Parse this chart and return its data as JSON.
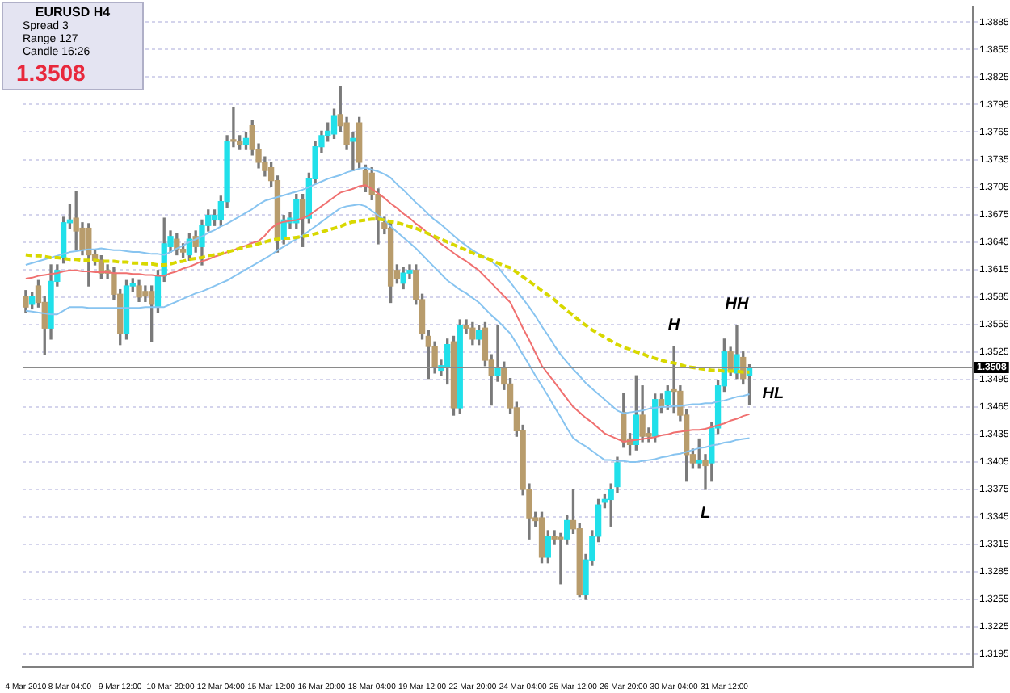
{
  "chart_data": {
    "type": "candlestick",
    "title": "EURUSD  H4",
    "annotations": [
      "Spread  3",
      "Range  127",
      "Candle  16:26",
      "1.3508",
      {
        "text": "H",
        "y": 1.3531
      },
      {
        "text": "HH",
        "y": 1.3554
      },
      {
        "text": "L",
        "y": 1.3375
      },
      "HL"
    ],
    "categories": [
      "4 Mar 2010",
      null,
      null,
      null,
      null,
      null,
      null,
      "8 Mar 04:00",
      null,
      null,
      null,
      null,
      null,
      null,
      null,
      "9 Mar 12:00",
      null,
      null,
      null,
      null,
      null,
      null,
      null,
      "10 Mar 20:00",
      null,
      null,
      null,
      null,
      null,
      null,
      null,
      "12 Mar 04:00",
      null,
      null,
      null,
      null,
      null,
      null,
      null,
      "15 Mar 12:00",
      null,
      null,
      null,
      null,
      null,
      null,
      null,
      "16 Mar 20:00",
      null,
      null,
      null,
      null,
      null,
      null,
      null,
      "18 Mar 04:00",
      null,
      null,
      null,
      null,
      null,
      null,
      null,
      "19 Mar 12:00",
      null,
      null,
      null,
      null,
      null,
      null,
      null,
      "22 Mar 20:00",
      null,
      null,
      null,
      null,
      null,
      null,
      null,
      "24 Mar 04:00",
      null,
      null,
      null,
      null,
      null,
      null,
      null,
      "25 Mar 12:00",
      null,
      null,
      null,
      null,
      null,
      null,
      null,
      "26 Mar 20:00",
      null,
      null,
      null,
      null,
      null,
      null,
      null,
      "30 Mar 04:00",
      null,
      null,
      null,
      null,
      null,
      null,
      null,
      "31 Mar 12:00",
      null,
      null,
      null,
      null,
      null,
      null,
      null,
      null,
      null,
      null,
      null,
      null,
      null,
      null,
      null,
      null,
      null,
      null,
      null,
      null,
      null,
      null,
      null,
      null,
      null,
      null,
      null,
      null,
      null,
      null,
      null,
      null,
      null,
      null,
      null,
      null,
      null,
      null,
      null
    ],
    "ohlc": [
      [
        1.3585,
        1.3592,
        1.3568,
        1.3574
      ],
      [
        1.3577,
        1.359,
        1.3572,
        1.3585
      ],
      [
        1.3597,
        1.3603,
        1.3574,
        1.3579
      ],
      [
        1.3579,
        1.3585,
        1.3522,
        1.3551
      ],
      [
        1.3551,
        1.362,
        1.3539,
        1.3602
      ],
      [
        1.3602,
        1.362,
        1.3597,
        1.3614
      ],
      [
        1.3628,
        1.3672,
        1.3622,
        1.3666
      ],
      [
        1.3666,
        1.3686,
        1.366,
        1.3669
      ],
      [
        1.3671,
        1.37,
        1.3637,
        1.3657
      ],
      [
        1.366,
        1.3666,
        1.3631,
        1.3637
      ],
      [
        1.366,
        1.3665,
        1.3597,
        1.3631
      ],
      [
        1.3631,
        1.3637,
        1.362,
        1.3625
      ],
      [
        1.3625,
        1.363,
        1.3605,
        1.3611
      ],
      [
        1.3614,
        1.362,
        1.3605,
        1.3611
      ],
      [
        1.3611,
        1.3617,
        1.3582,
        1.3588
      ],
      [
        1.3588,
        1.3593,
        1.3533,
        1.3545
      ],
      [
        1.3545,
        1.3603,
        1.3539,
        1.3597
      ],
      [
        1.3597,
        1.3605,
        1.3591,
        1.36
      ],
      [
        1.3597,
        1.3603,
        1.358,
        1.3585
      ],
      [
        1.3591,
        1.3597,
        1.358,
        1.3586
      ],
      [
        1.3591,
        1.3597,
        1.3536,
        1.3577
      ],
      [
        1.3574,
        1.3614,
        1.3568,
        1.3608
      ],
      [
        1.3608,
        1.3671,
        1.3602,
        1.3643
      ],
      [
        1.364,
        1.3657,
        1.3634,
        1.3651
      ],
      [
        1.3648,
        1.3654,
        1.3631,
        1.3637
      ],
      [
        1.3637,
        1.3643,
        1.3628,
        1.3634
      ],
      [
        1.3631,
        1.3654,
        1.3625,
        1.3648
      ],
      [
        1.3651,
        1.3657,
        1.3634,
        1.364
      ],
      [
        1.364,
        1.3669,
        1.362,
        1.3663
      ],
      [
        1.3663,
        1.368,
        1.3657,
        1.3674
      ],
      [
        1.3669,
        1.368,
        1.3663,
        1.3674
      ],
      [
        1.3669,
        1.3695,
        1.3663,
        1.3689
      ],
      [
        1.3689,
        1.3761,
        1.3683,
        1.3755
      ],
      [
        1.3755,
        1.3792,
        1.3749,
        1.3755
      ],
      [
        1.3755,
        1.3761,
        1.3746,
        1.3752
      ],
      [
        1.3752,
        1.3764,
        1.3746,
        1.3758
      ],
      [
        1.3772,
        1.3778,
        1.374,
        1.3746
      ],
      [
        1.3746,
        1.3752,
        1.3726,
        1.3732
      ],
      [
        1.3732,
        1.3738,
        1.3717,
        1.3723
      ],
      [
        1.3726,
        1.3732,
        1.3706,
        1.3712
      ],
      [
        1.3712,
        1.3717,
        1.3634,
        1.3648
      ],
      [
        1.3648,
        1.3674,
        1.3643,
        1.3669
      ],
      [
        1.3666,
        1.3677,
        1.366,
        1.3671
      ],
      [
        1.3666,
        1.3697,
        1.366,
        1.3691
      ],
      [
        1.3691,
        1.3697,
        1.364,
        1.3671
      ],
      [
        1.3671,
        1.372,
        1.3666,
        1.3714
      ],
      [
        1.3714,
        1.3755,
        1.3709,
        1.3749
      ],
      [
        1.3749,
        1.3766,
        1.3743,
        1.3761
      ],
      [
        1.3761,
        1.3775,
        1.3755,
        1.3766
      ],
      [
        1.3763,
        1.379,
        1.3758,
        1.3782
      ],
      [
        1.3784,
        1.3815,
        1.3766,
        1.3772
      ],
      [
        1.3775,
        1.3781,
        1.3746,
        1.3752
      ],
      [
        1.3755,
        1.3764,
        1.3723,
        1.3758
      ],
      [
        1.3775,
        1.3781,
        1.3726,
        1.3732
      ],
      [
        1.3723,
        1.3729,
        1.37,
        1.3706
      ],
      [
        1.372,
        1.3726,
        1.3691,
        1.3697
      ],
      [
        1.3697,
        1.3703,
        1.3643,
        1.3669
      ],
      [
        1.3666,
        1.3672,
        1.3654,
        1.366
      ],
      [
        1.366,
        1.3666,
        1.3579,
        1.3597
      ],
      [
        1.3614,
        1.362,
        1.36,
        1.3605
      ],
      [
        1.36,
        1.3617,
        1.3594,
        1.3611
      ],
      [
        1.3611,
        1.362,
        1.3605,
        1.3614
      ],
      [
        1.3614,
        1.362,
        1.3577,
        1.3582
      ],
      [
        1.3582,
        1.3588,
        1.3539,
        1.3545
      ],
      [
        1.3542,
        1.3548,
        1.3496,
        1.3531
      ],
      [
        1.3531,
        1.3536,
        1.3502,
        1.3508
      ],
      [
        1.3505,
        1.3516,
        1.3499,
        1.351
      ],
      [
        1.3508,
        1.3539,
        1.349,
        1.3533
      ],
      [
        1.3536,
        1.3542,
        1.3456,
        1.3464
      ],
      [
        1.3464,
        1.356,
        1.3458,
        1.3554
      ],
      [
        1.3554,
        1.356,
        1.3545,
        1.3551
      ],
      [
        1.3551,
        1.3557,
        1.3533,
        1.3539
      ],
      [
        1.3539,
        1.3554,
        1.3533,
        1.3548
      ],
      [
        1.3551,
        1.3557,
        1.351,
        1.3516
      ],
      [
        1.3516,
        1.3522,
        1.3467,
        1.3499
      ],
      [
        1.3499,
        1.3554,
        1.3493,
        1.3508
      ],
      [
        1.3508,
        1.3514,
        1.3484,
        1.349
      ],
      [
        1.349,
        1.3496,
        1.3458,
        1.3464
      ],
      [
        1.3464,
        1.347,
        1.3433,
        1.3439
      ],
      [
        1.3439,
        1.3445,
        1.3369,
        1.3375
      ],
      [
        1.3375,
        1.3381,
        1.3321,
        1.3344
      ],
      [
        1.3344,
        1.335,
        1.3335,
        1.3341
      ],
      [
        1.3344,
        1.335,
        1.3295,
        1.3301
      ],
      [
        1.3301,
        1.333,
        1.3295,
        1.3324
      ],
      [
        1.3324,
        1.333,
        1.3315,
        1.3321
      ],
      [
        1.3321,
        1.3327,
        1.3272,
        1.3321
      ],
      [
        1.3321,
        1.3347,
        1.3315,
        1.3341
      ],
      [
        1.3341,
        1.3375,
        1.3327,
        1.3332
      ],
      [
        1.3332,
        1.3338,
        1.3258,
        1.326
      ],
      [
        1.326,
        1.3304,
        1.3255,
        1.3298
      ],
      [
        1.3298,
        1.333,
        1.3292,
        1.3324
      ],
      [
        1.3324,
        1.3364,
        1.3318,
        1.3358
      ],
      [
        1.3361,
        1.337,
        1.3355,
        1.3364
      ],
      [
        1.3364,
        1.3381,
        1.3335,
        1.3375
      ],
      [
        1.3378,
        1.341,
        1.3372,
        1.3404
      ],
      [
        1.3459,
        1.348,
        1.3421,
        1.3427
      ],
      [
        1.343,
        1.3436,
        1.3413,
        1.3424
      ],
      [
        1.3424,
        1.3499,
        1.3418,
        1.3456
      ],
      [
        1.3456,
        1.3488,
        1.3427,
        1.3433
      ],
      [
        1.3436,
        1.3442,
        1.3427,
        1.3433
      ],
      [
        1.3433,
        1.3479,
        1.3427,
        1.3473
      ],
      [
        1.3473,
        1.3479,
        1.3459,
        1.3465
      ],
      [
        1.3468,
        1.3488,
        1.3462,
        1.3482
      ],
      [
        1.3482,
        1.3531,
        1.3459,
        1.3482
      ],
      [
        1.3482,
        1.3488,
        1.345,
        1.3456
      ],
      [
        1.3456,
        1.3462,
        1.3384,
        1.3413
      ],
      [
        1.3413,
        1.3419,
        1.3398,
        1.3404
      ],
      [
        1.3404,
        1.343,
        1.3398,
        1.3407
      ],
      [
        1.3407,
        1.3413,
        1.3375,
        1.3401
      ],
      [
        1.3404,
        1.3448,
        1.3384,
        1.3442
      ],
      [
        1.3442,
        1.3494,
        1.3436,
        1.3488
      ],
      [
        1.3488,
        1.3539,
        1.3482,
        1.3525
      ],
      [
        1.3525,
        1.353,
        1.3499,
        1.3505
      ],
      [
        1.3502,
        1.3554,
        1.3496,
        1.3522
      ],
      [
        1.3519,
        1.3525,
        1.349,
        1.3496
      ],
      [
        1.3499,
        1.3511,
        1.3468,
        1.3508
      ],
      null,
      null,
      null,
      null,
      null,
      null,
      null,
      null,
      null,
      null,
      null,
      null,
      null,
      null,
      null,
      null,
      null,
      null,
      null,
      null,
      null,
      null,
      null,
      null,
      null,
      null,
      null,
      null,
      null,
      null,
      null,
      null,
      null,
      null,
      null
    ],
    "colors": [
      "#b89c6c",
      "#20e0ea",
      "#b89c6c",
      "#b89c6c",
      "#20e0ea",
      "#20e0ea",
      "#20e0ea",
      "#20e0ea",
      "#b89c6c",
      "#b89c6c",
      "#b89c6c",
      "#b89c6c",
      "#b89c6c",
      "#b89c6c",
      "#b89c6c",
      "#b89c6c",
      "#20e0ea",
      "#20e0ea",
      "#b89c6c",
      "#b89c6c",
      "#b89c6c",
      "#20e0ea",
      "#20e0ea",
      "#20e0ea",
      "#b89c6c",
      "#b89c6c",
      "#20e0ea",
      "#b89c6c",
      "#20e0ea",
      "#20e0ea",
      "#20e0ea",
      "#20e0ea",
      "#20e0ea",
      "#b89c6c",
      "#b89c6c",
      "#20e0ea",
      "#b89c6c",
      "#b89c6c",
      "#b89c6c",
      "#b89c6c",
      "#b89c6c",
      "#20e0ea",
      "#20e0ea",
      "#20e0ea",
      "#b89c6c",
      "#20e0ea",
      "#20e0ea",
      "#20e0ea",
      "#20e0ea",
      "#20e0ea",
      "#b89c6c",
      "#b89c6c",
      "#20e0ea",
      "#b89c6c",
      "#b89c6c",
      "#b89c6c",
      "#b89c6c",
      "#b89c6c",
      "#b89c6c",
      "#b89c6c",
      "#20e0ea",
      "#20e0ea",
      "#b89c6c",
      "#b89c6c",
      "#b89c6c",
      "#b89c6c",
      "#20e0ea",
      "#20e0ea",
      "#b89c6c",
      "#20e0ea",
      "#b89c6c",
      "#b89c6c",
      "#20e0ea",
      "#b89c6c",
      "#b89c6c",
      "#20e0ea",
      "#b89c6c",
      "#b89c6c",
      "#b89c6c",
      "#b89c6c",
      "#b89c6c",
      "#b89c6c",
      "#b89c6c",
      "#20e0ea",
      "#b89c6c",
      "#b89c6c",
      "#20e0ea",
      "#b89c6c",
      "#b89c6c",
      "#20e0ea",
      "#20e0ea",
      "#20e0ea",
      "#20e0ea",
      "#20e0ea",
      "#20e0ea",
      "#b89c6c",
      "#b89c6c",
      "#20e0ea",
      "#b89c6c",
      "#b89c6c",
      "#20e0ea",
      "#b89c6c",
      "#20e0ea",
      "#b89c6c",
      "#b89c6c",
      "#b89c6c",
      "#b89c6c",
      "#20e0ea",
      "#b89c6c",
      "#20e0ea",
      "#20e0ea",
      "#20e0ea",
      "#b89c6c",
      "#20e0ea",
      "#b89c6c",
      "#20e0ea",
      null,
      null,
      null,
      null,
      null,
      null,
      null,
      null,
      null,
      null,
      null,
      null,
      null,
      null,
      null,
      null,
      null,
      null,
      null,
      null,
      null,
      null,
      null,
      null,
      null,
      null,
      null,
      null,
      null,
      null,
      null,
      null,
      null,
      null,
      null
    ],
    "series": [
      {
        "type": "line",
        "color": "#d8d800",
        "line_style": "dashed",
        "values": [
          1.3631,
          1.363,
          1.363,
          1.3629,
          1.3628,
          1.3628,
          1.3627,
          1.3626,
          1.3626,
          1.3625,
          1.3625,
          1.3625,
          1.3624,
          1.3624,
          1.3624,
          1.3623,
          1.3623,
          1.3622,
          1.3622,
          1.3621,
          1.3621,
          1.362,
          1.362,
          1.3621,
          1.3623,
          1.3624,
          1.3626,
          1.3627,
          1.3628,
          1.363,
          1.3631,
          1.3632,
          1.3634,
          1.3636,
          1.3638,
          1.364,
          1.3641,
          1.3643,
          1.3645,
          1.3647,
          1.3648,
          1.3649,
          1.3649,
          1.365,
          1.3651,
          1.3652,
          1.3654,
          1.3656,
          1.3658,
          1.366,
          1.3662,
          1.3665,
          1.3667,
          1.3668,
          1.3669,
          1.367,
          1.367,
          1.3669,
          1.3667,
          1.3666,
          1.3664,
          1.3662,
          1.366,
          1.3657,
          1.3654,
          1.3651,
          1.3648,
          1.3645,
          1.3642,
          1.3639,
          1.3636,
          1.3633,
          1.363,
          1.3628,
          1.3625,
          1.3622,
          1.3619,
          1.3617,
          1.3612,
          1.3607,
          1.3602,
          1.3597,
          1.3592,
          1.3587,
          1.3582,
          1.3576,
          1.357,
          1.3565,
          1.3559,
          1.3554,
          1.3549,
          1.3545,
          1.3541,
          1.3537,
          1.3533,
          1.353,
          1.3528,
          1.3525,
          1.3523,
          1.352,
          1.3518,
          1.3516,
          1.3514,
          1.3513,
          1.3511,
          1.3509,
          1.3508,
          1.3507,
          1.3506,
          1.3505,
          1.3505,
          1.3504,
          1.3504,
          1.3504,
          1.3503,
          1.3503,
          null,
          null,
          null,
          null,
          null,
          null,
          null,
          null,
          null,
          null,
          null,
          null,
          null,
          null,
          null,
          null,
          null,
          null,
          null,
          null,
          null,
          null,
          null,
          null,
          null,
          null,
          null,
          null,
          null,
          null,
          null,
          null,
          null,
          null,
          null
        ]
      },
      {
        "type": "line",
        "color": "#f07070",
        "values": [
          1.3605,
          1.3606,
          1.3608,
          1.3609,
          1.361,
          1.3611,
          1.3613,
          1.3614,
          1.3614,
          1.3613,
          1.3613,
          1.3612,
          1.3612,
          1.3612,
          1.3611,
          1.3611,
          1.3611,
          1.361,
          1.361,
          1.3609,
          1.3609,
          1.3608,
          1.3608,
          1.3611,
          1.3613,
          1.3616,
          1.3618,
          1.3621,
          1.3624,
          1.3626,
          1.3629,
          1.3631,
          1.3634,
          1.3636,
          1.3639,
          1.3641,
          1.3644,
          1.3646,
          1.3652,
          1.366,
          1.3665,
          1.3667,
          1.3668,
          1.3669,
          1.3671,
          1.3674,
          1.3679,
          1.3684,
          1.3689,
          1.3694,
          1.3699,
          1.3701,
          1.3703,
          1.3706,
          1.3707,
          1.3703,
          1.3698,
          1.3693,
          1.3687,
          1.3682,
          1.3676,
          1.3671,
          1.3665,
          1.366,
          1.3654,
          1.3649,
          1.3643,
          1.3638,
          1.3633,
          1.3628,
          1.3624,
          1.3619,
          1.3614,
          1.3607,
          1.36,
          1.3593,
          1.3586,
          1.3579,
          1.3565,
          1.3551,
          1.3538,
          1.3524,
          1.351,
          1.3501,
          1.3492,
          1.3483,
          1.3474,
          1.3465,
          1.3459,
          1.3453,
          1.3448,
          1.3442,
          1.3436,
          1.3433,
          1.343,
          1.3427,
          1.3428,
          1.3429,
          1.343,
          1.3431,
          1.3432,
          1.3434,
          1.3435,
          1.3437,
          1.3438,
          1.3439,
          1.344,
          1.344,
          1.3441,
          1.3443,
          1.3445,
          1.3447,
          1.345,
          1.3452,
          1.3455,
          1.3457,
          null,
          null,
          null,
          null,
          null,
          null,
          null,
          null,
          null,
          null,
          null,
          null,
          null,
          null,
          null,
          null,
          null,
          null,
          null,
          null,
          null,
          null,
          null,
          null,
          null,
          null,
          null,
          null,
          null,
          null,
          null,
          null,
          null,
          null,
          null
        ]
      },
      {
        "type": "line",
        "color": "#88c4f0",
        "values": [
          1.362,
          1.3622,
          1.3624,
          1.3626,
          1.3628,
          1.363,
          1.3632,
          1.3634,
          1.3635,
          1.3636,
          1.3637,
          1.3637,
          1.3638,
          1.3637,
          1.3636,
          1.3636,
          1.3635,
          1.3634,
          1.3634,
          1.3633,
          1.3632,
          1.3632,
          1.3631,
          1.3634,
          1.3638,
          1.3641,
          1.3645,
          1.3648,
          1.3651,
          1.3655,
          1.3658,
          1.3662,
          1.3665,
          1.3669,
          1.3673,
          1.3677,
          1.3681,
          1.3686,
          1.369,
          1.3692,
          1.3694,
          1.3696,
          1.3698,
          1.37,
          1.3702,
          1.3705,
          1.3708,
          1.3711,
          1.3714,
          1.3716,
          1.3718,
          1.3721,
          1.3723,
          1.3725,
          1.3726,
          1.3724,
          1.3722,
          1.3719,
          1.3715,
          1.3708,
          1.3702,
          1.3695,
          1.3688,
          1.3682,
          1.3675,
          1.3669,
          1.3664,
          1.3658,
          1.3652,
          1.3646,
          1.3641,
          1.3636,
          1.3632,
          1.3628,
          1.3624,
          1.3618,
          1.3609,
          1.3601,
          1.3592,
          1.3583,
          1.3574,
          1.3564,
          1.3553,
          1.3543,
          1.3532,
          1.3522,
          1.3514,
          1.3506,
          1.3499,
          1.3491,
          1.3485,
          1.3479,
          1.3473,
          1.3467,
          1.3461,
          1.3458,
          1.3459,
          1.346,
          1.3461,
          1.3463,
          1.3464,
          1.3465,
          1.3465,
          1.3466,
          1.3466,
          1.3467,
          1.3468,
          1.3468,
          1.3469,
          1.3469,
          1.3471,
          1.3472,
          1.3474,
          1.3476,
          1.3477,
          1.3479,
          null,
          null,
          null,
          null,
          null,
          null,
          null,
          null,
          null,
          null,
          null,
          null,
          null,
          null,
          null,
          null,
          null,
          null,
          null,
          null,
          null,
          null,
          null,
          null,
          null,
          null,
          null,
          null,
          null,
          null,
          null,
          null,
          null,
          null,
          null
        ]
      },
      {
        "type": "line",
        "color": "#88c4f0",
        "values": [
          1.357,
          1.3569,
          1.3568,
          1.3567,
          1.3566,
          1.3566,
          1.357,
          1.3574,
          1.3574,
          1.3574,
          1.3573,
          1.3573,
          1.3573,
          1.3573,
          1.3573,
          1.3573,
          1.3573,
          1.3573,
          1.3573,
          1.3574,
          1.3574,
          1.3574,
          1.3574,
          1.3577,
          1.358,
          1.3583,
          1.3586,
          1.3589,
          1.3591,
          1.3594,
          1.3597,
          1.36,
          1.3603,
          1.3607,
          1.3611,
          1.3615,
          1.3619,
          1.3623,
          1.3627,
          1.3631,
          1.3636,
          1.364,
          1.3644,
          1.3648,
          1.3652,
          1.3657,
          1.3662,
          1.3667,
          1.3672,
          1.3677,
          1.3682,
          1.3684,
          1.3685,
          1.3686,
          1.3684,
          1.3679,
          1.3674,
          1.3669,
          1.3662,
          1.3656,
          1.365,
          1.3644,
          1.3638,
          1.3631,
          1.3624,
          1.3617,
          1.361,
          1.3603,
          1.3598,
          1.3593,
          1.3589,
          1.3584,
          1.3579,
          1.3572,
          1.3565,
          1.3559,
          1.3552,
          1.3545,
          1.3534,
          1.3522,
          1.3511,
          1.3499,
          1.3488,
          1.3477,
          1.3465,
          1.3454,
          1.3442,
          1.3431,
          1.3426,
          1.3422,
          1.3417,
          1.3412,
          1.3407,
          1.3407,
          1.3406,
          1.3406,
          1.3405,
          1.3405,
          1.3406,
          1.3407,
          1.3408,
          1.341,
          1.3411,
          1.3413,
          1.3414,
          1.3416,
          1.3418,
          1.342,
          1.3421,
          1.3423,
          1.3424,
          1.3426,
          1.3427,
          1.3429,
          1.343,
          1.3431,
          null,
          null,
          null,
          null,
          null,
          null,
          null,
          null,
          null,
          null,
          null,
          null,
          null,
          null,
          null,
          null,
          null,
          null,
          null,
          null,
          null,
          null,
          null,
          null,
          null,
          null,
          null,
          null,
          null,
          null,
          null,
          null,
          null,
          null,
          null
        ]
      }
    ],
    "ref_lines": [
      {
        "axis": "y",
        "value": 1.3508,
        "label": "1.3508",
        "color": "#8a8a8a"
      }
    ],
    "ylim": [
      1.3181,
      1.3901
    ],
    "yticks": [
      1.3885,
      1.3855,
      1.3825,
      1.3795,
      1.3765,
      1.3735,
      1.3705,
      1.3675,
      1.3645,
      1.3615,
      1.3585,
      1.3555,
      1.3525,
      1.3495,
      1.3465,
      1.3435,
      1.3405,
      1.3375,
      1.3345,
      1.3315,
      1.3285,
      1.3255,
      1.3225,
      1.3195
    ],
    "grid": "y",
    "marker": "none"
  }
}
